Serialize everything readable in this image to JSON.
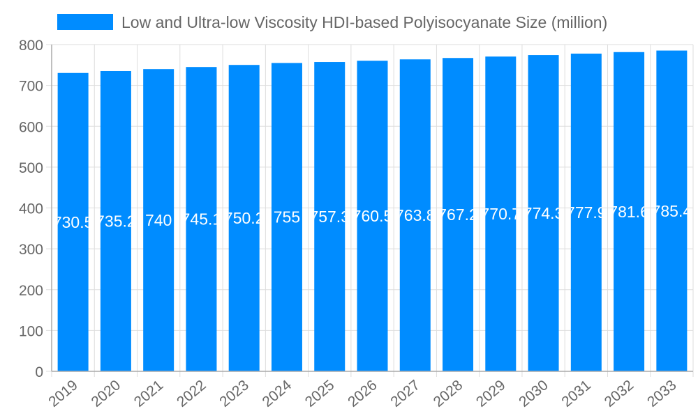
{
  "chart_data": {
    "type": "bar",
    "legend": {
      "label": "Low and Ultra-low Viscosity HDI-based Polyisocyanate Size (million)",
      "placement": "top"
    },
    "categories": [
      "2019",
      "2020",
      "2021",
      "2022",
      "2023",
      "2024",
      "2025",
      "2026",
      "2027",
      "2028",
      "2029",
      "2030",
      "2031",
      "2032",
      "2033"
    ],
    "values": [
      730.5,
      735.2,
      740,
      745.1,
      750.2,
      755,
      757.3,
      760.5,
      763.8,
      767.2,
      770.7,
      774.3,
      777.9,
      781.6,
      785.4
    ],
    "ylim": [
      0,
      800
    ],
    "yticks": [
      0,
      100,
      200,
      300,
      400,
      500,
      600,
      700,
      800
    ],
    "grid": true,
    "bar_color": "#008cff",
    "label_color": "#ffffff"
  }
}
